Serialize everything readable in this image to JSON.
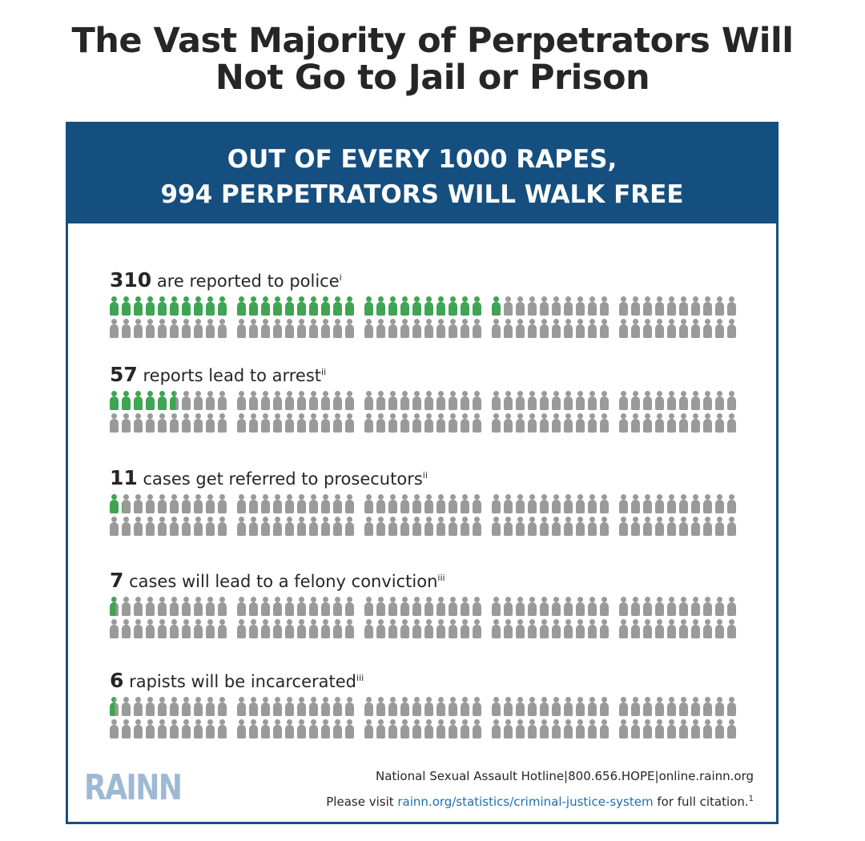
{
  "title": {
    "line1": "The Vast Majority of Perpetrators Will",
    "line2": "Not Go to Jail or Prison"
  },
  "banner": {
    "line1": "OUT OF EVERY 1000 RAPES,",
    "line2": "994 PERPETRATORS WILL WALK FREE"
  },
  "total_per_section": 100,
  "sections": [
    {
      "number": "310",
      "text": " are reported to police",
      "note": "i",
      "highlighted": 31
    },
    {
      "number": "57",
      "text": " reports lead to arrest",
      "note": "ii",
      "highlighted": 5.7
    },
    {
      "number": "11",
      "text": " cases get referred to prosecutors",
      "note": "ii",
      "highlighted": 1.1
    },
    {
      "number": "7",
      "text": " cases will lead to a felony conviction",
      "note": "iii",
      "highlighted": 0.7
    },
    {
      "number": "6",
      "text": " rapists will be incarcerated",
      "note": "iii",
      "highlighted": 0.6
    }
  ],
  "colors": {
    "banner": "#154f80",
    "highlight": "#3fa453",
    "neutral": "#9a9a9a",
    "logo": "#9db9d3",
    "link": "#1f6eb0"
  },
  "icon": "person-icon",
  "footer": {
    "logo": "RAINN",
    "hotline": "National Sexual Assault Hotline|800.656.HOPE|online.rainn.org",
    "citation_prefix": "Please visit ",
    "citation_link": "rainn.org/statistics/criminal-justice-system",
    "citation_suffix": " for full citation.",
    "citation_note": "1"
  }
}
